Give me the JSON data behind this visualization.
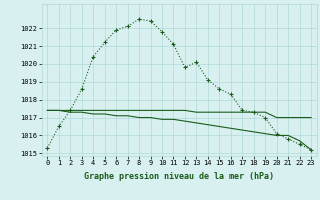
{
  "hours": [
    0,
    1,
    2,
    3,
    4,
    5,
    6,
    7,
    8,
    9,
    10,
    11,
    12,
    13,
    14,
    15,
    16,
    17,
    18,
    19,
    20,
    21,
    22,
    23
  ],
  "line1": [
    1015.3,
    1016.5,
    1017.4,
    1018.6,
    1020.4,
    1021.2,
    1021.9,
    1022.1,
    1022.5,
    1022.4,
    1021.8,
    1021.1,
    1019.8,
    1020.1,
    1019.1,
    1018.6,
    1018.3,
    1017.4,
    1017.3,
    1017.0,
    1016.1,
    1015.8,
    1015.5,
    1015.2
  ],
  "line2": [
    1017.4,
    1017.4,
    1017.4,
    1017.4,
    1017.4,
    1017.4,
    1017.4,
    1017.4,
    1017.4,
    1017.4,
    1017.4,
    1017.4,
    1017.4,
    1017.3,
    1017.3,
    1017.3,
    1017.3,
    1017.3,
    1017.3,
    1017.3,
    1017.0,
    1017.0,
    1017.0,
    1017.0
  ],
  "line3": [
    1017.4,
    1017.4,
    1017.3,
    1017.3,
    1017.2,
    1017.2,
    1017.1,
    1017.1,
    1017.0,
    1017.0,
    1016.9,
    1016.9,
    1016.8,
    1016.7,
    1016.6,
    1016.5,
    1016.4,
    1016.3,
    1016.2,
    1016.1,
    1016.0,
    1016.0,
    1015.7,
    1015.2
  ],
  "line_color": "#1a5c1a",
  "bg_color": "#d8f0f0",
  "grid_color": "#b0d8d8",
  "xlabel": "Graphe pression niveau de la mer (hPa)",
  "ylim": [
    1015,
    1023
  ],
  "yticks": [
    1015,
    1016,
    1017,
    1018,
    1019,
    1020,
    1021,
    1022
  ],
  "xticks": [
    0,
    1,
    2,
    3,
    4,
    5,
    6,
    7,
    8,
    9,
    10,
    11,
    12,
    13,
    14,
    15,
    16,
    17,
    18,
    19,
    20,
    21,
    22,
    23
  ],
  "tick_fontsize": 5.0,
  "xlabel_fontsize": 6.0
}
